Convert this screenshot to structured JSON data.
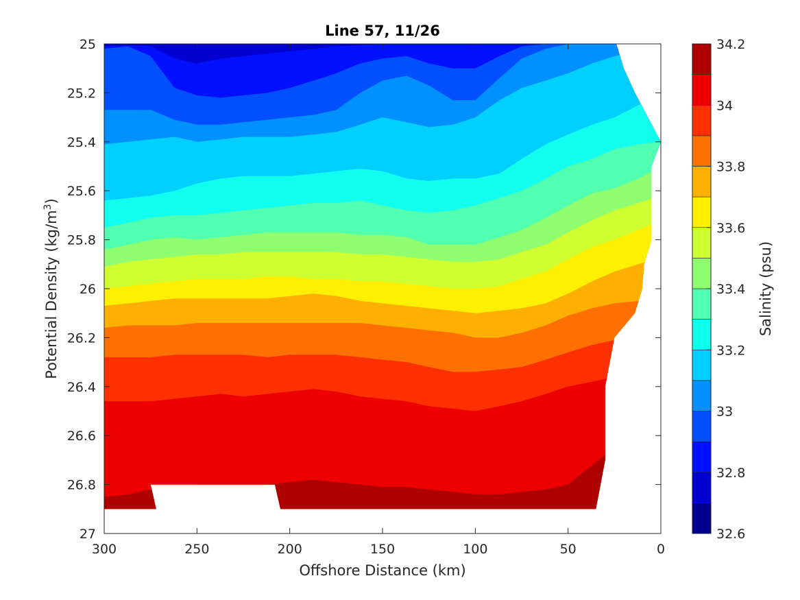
{
  "chart_data": {
    "type": "heatmap",
    "subtype": "filled-contour",
    "title": "Line 57, 11/26",
    "xlabel": "Offshore Distance (km)",
    "ylabel_main": "Potential Density (kg/m",
    "ylabel_sup": "3",
    "ylabel_end": ")",
    "colorbar_label": "Salinity (psu)",
    "x_axis": {
      "range": [
        300,
        0
      ],
      "reversed": true,
      "ticks": [
        300,
        250,
        200,
        150,
        100,
        50,
        0
      ],
      "tick_labels": [
        "300",
        "250",
        "200",
        "150",
        "100",
        "50",
        "0"
      ]
    },
    "y_axis": {
      "range": [
        25,
        27
      ],
      "reversed": true,
      "ticks": [
        25,
        25.2,
        25.4,
        25.6,
        25.8,
        26,
        26.2,
        26.4,
        26.6,
        26.8,
        27
      ],
      "tick_labels": [
        "25",
        "25.2",
        "25.4",
        "25.6",
        "25.8",
        "26",
        "26.2",
        "26.4",
        "26.6",
        "26.8",
        "27"
      ]
    },
    "colorbar": {
      "levels": [
        32.6,
        32.7,
        32.8,
        32.9,
        33.0,
        33.1,
        33.2,
        33.3,
        33.4,
        33.5,
        33.6,
        33.7,
        33.8,
        33.9,
        34.0,
        34.1,
        34.2
      ],
      "tick_values": [
        32.6,
        32.8,
        33,
        33.2,
        33.4,
        33.6,
        33.8,
        34,
        34.2
      ],
      "tick_labels": [
        "32.6",
        "32.8",
        "33",
        "33.2",
        "33.4",
        "33.6",
        "33.8",
        "34",
        "34.2"
      ],
      "colors": [
        "#00008f",
        "#0000d0",
        "#0010ff",
        "#0050ff",
        "#0090ff",
        "#00cfff",
        "#10ffef",
        "#50ffaf",
        "#8fff70",
        "#cfff30",
        "#ffef00",
        "#ffaf00",
        "#ff7000",
        "#ff3000",
        "#ef0000",
        "#af0000"
      ]
    },
    "contour_boundaries": {
      "x_km": [
        300,
        287,
        275,
        262,
        250,
        237,
        225,
        212,
        200,
        187,
        175,
        162,
        150,
        137,
        125,
        112,
        100,
        87,
        75,
        62,
        50,
        37,
        25,
        12,
        0
      ],
      "isolines": [
        {
          "value": 32.8,
          "sigma": [
            25.01,
            25.005,
            25.01,
            25.06,
            25.08,
            25.06,
            25.05,
            25.04,
            25.03,
            25.02,
            25.01,
            25.005,
            25.0,
            25.0,
            25.0,
            25.0,
            25.0,
            25.0,
            25.0,
            25.0,
            25.0,
            25.0,
            25.0,
            25.0,
            25.0
          ]
        },
        {
          "value": 32.9,
          "sigma": [
            25.02,
            25.01,
            25.05,
            25.18,
            25.21,
            25.22,
            25.21,
            25.2,
            25.18,
            25.15,
            25.12,
            25.08,
            25.06,
            25.05,
            25.08,
            25.1,
            25.1,
            25.05,
            25.01,
            25.0,
            25.0,
            25.0,
            25.0,
            25.0,
            25.0
          ]
        },
        {
          "value": 33.0,
          "sigma": [
            25.27,
            25.27,
            25.27,
            25.31,
            25.33,
            25.33,
            25.32,
            25.31,
            25.3,
            25.29,
            25.27,
            25.2,
            25.15,
            25.13,
            25.17,
            25.23,
            25.23,
            25.14,
            25.06,
            25.02,
            25.0,
            25.0,
            25.0,
            25.0,
            25.0
          ]
        },
        {
          "value": 33.1,
          "sigma": [
            25.41,
            25.4,
            25.39,
            25.38,
            25.4,
            25.39,
            25.38,
            25.38,
            25.38,
            25.37,
            25.36,
            25.33,
            25.3,
            25.32,
            25.34,
            25.33,
            25.3,
            25.23,
            25.18,
            25.15,
            25.12,
            25.08,
            25.05,
            25.03,
            25.0
          ]
        },
        {
          "value": 33.2,
          "sigma": [
            25.64,
            25.63,
            25.62,
            25.6,
            25.57,
            25.55,
            25.54,
            25.54,
            25.54,
            25.53,
            25.52,
            25.51,
            25.52,
            25.55,
            25.56,
            25.55,
            25.55,
            25.53,
            25.47,
            25.41,
            25.37,
            25.33,
            25.3,
            25.25,
            25.2
          ]
        },
        {
          "value": 33.3,
          "sigma": [
            25.75,
            25.73,
            25.71,
            25.7,
            25.7,
            25.69,
            25.68,
            25.67,
            25.66,
            25.65,
            25.65,
            25.64,
            25.66,
            25.68,
            25.69,
            25.68,
            25.66,
            25.63,
            25.6,
            25.55,
            25.5,
            25.47,
            25.43,
            25.41,
            25.4
          ]
        },
        {
          "value": 33.4,
          "sigma": [
            25.84,
            25.82,
            25.8,
            25.79,
            25.8,
            25.79,
            25.78,
            25.77,
            25.77,
            25.77,
            25.77,
            25.78,
            25.78,
            25.79,
            25.82,
            25.82,
            25.82,
            25.79,
            25.76,
            25.71,
            25.66,
            25.61,
            25.59,
            25.55,
            25.5
          ]
        },
        {
          "value": 33.5,
          "sigma": [
            25.91,
            25.89,
            25.88,
            25.87,
            25.86,
            25.86,
            25.85,
            25.85,
            25.85,
            25.85,
            25.85,
            25.86,
            25.86,
            25.87,
            25.88,
            25.89,
            25.89,
            25.88,
            25.85,
            25.82,
            25.77,
            25.72,
            25.68,
            25.65,
            25.62
          ]
        },
        {
          "value": 33.6,
          "sigma": [
            26.0,
            25.99,
            25.98,
            25.97,
            25.96,
            25.96,
            25.96,
            25.95,
            25.95,
            25.96,
            25.96,
            25.97,
            25.97,
            25.98,
            25.99,
            26.0,
            26.0,
            25.99,
            25.96,
            25.93,
            25.88,
            25.83,
            25.8,
            25.76,
            25.72
          ]
        },
        {
          "value": 33.7,
          "sigma": [
            26.07,
            26.06,
            26.05,
            26.04,
            26.04,
            26.04,
            26.04,
            26.04,
            26.03,
            26.02,
            26.03,
            26.05,
            26.06,
            26.07,
            26.08,
            26.09,
            26.1,
            26.09,
            26.08,
            26.06,
            26.02,
            25.97,
            25.93,
            25.9,
            25.87
          ]
        },
        {
          "value": 33.8,
          "sigma": [
            26.16,
            26.15,
            26.15,
            26.15,
            26.14,
            26.14,
            26.14,
            26.14,
            26.14,
            26.14,
            26.14,
            26.14,
            26.15,
            26.16,
            26.17,
            26.18,
            26.2,
            26.2,
            26.18,
            26.15,
            26.11,
            26.08,
            26.06,
            26.05,
            26.04
          ]
        },
        {
          "value": 33.9,
          "sigma": [
            26.28,
            26.28,
            26.28,
            26.27,
            26.27,
            26.27,
            26.27,
            26.28,
            26.27,
            26.27,
            26.27,
            26.28,
            26.29,
            26.3,
            26.32,
            26.34,
            26.34,
            26.33,
            26.32,
            26.29,
            26.26,
            26.23,
            26.21,
            26.2,
            26.2
          ]
        },
        {
          "value": 34.0,
          "sigma": [
            26.46,
            26.46,
            26.46,
            26.45,
            26.44,
            26.43,
            26.44,
            26.43,
            26.42,
            26.41,
            26.42,
            26.44,
            26.45,
            26.46,
            26.48,
            26.49,
            26.5,
            26.48,
            26.46,
            26.43,
            26.4,
            26.38,
            26.36,
            26.35,
            26.35
          ]
        },
        {
          "value": 34.1,
          "sigma": [
            26.85,
            26.84,
            26.82,
            26.81,
            26.8,
            26.8,
            26.8,
            26.8,
            26.79,
            26.78,
            26.79,
            26.8,
            26.81,
            26.81,
            26.82,
            26.83,
            26.84,
            26.84,
            26.83,
            26.82,
            26.8,
            26.72,
            26.65,
            26.6,
            26.55
          ]
        }
      ]
    },
    "data_coverage": {
      "right_edge_by_row": [
        {
          "sigma": 25.0,
          "x_km": 24
        },
        {
          "sigma": 25.1,
          "x_km": 20
        },
        {
          "sigma": 25.2,
          "x_km": 14
        },
        {
          "sigma": 25.4,
          "x_km": 0
        },
        {
          "sigma": 25.5,
          "x_km": 5
        },
        {
          "sigma": 25.8,
          "x_km": 5
        },
        {
          "sigma": 25.9,
          "x_km": 9
        },
        {
          "sigma": 26.0,
          "x_km": 10
        },
        {
          "sigma": 26.1,
          "x_km": 14
        },
        {
          "sigma": 26.2,
          "x_km": 25
        },
        {
          "sigma": 26.4,
          "x_km": 30
        },
        {
          "sigma": 26.7,
          "x_km": 30
        },
        {
          "sigma": 26.9,
          "x_km": 35
        }
      ],
      "bottom_sigma": 26.9,
      "missing_bottom_segment": {
        "x_km_from": 275,
        "x_km_to": 205,
        "sigma_top": 26.8
      }
    },
    "grid": false,
    "legend": "colorbar-right"
  }
}
